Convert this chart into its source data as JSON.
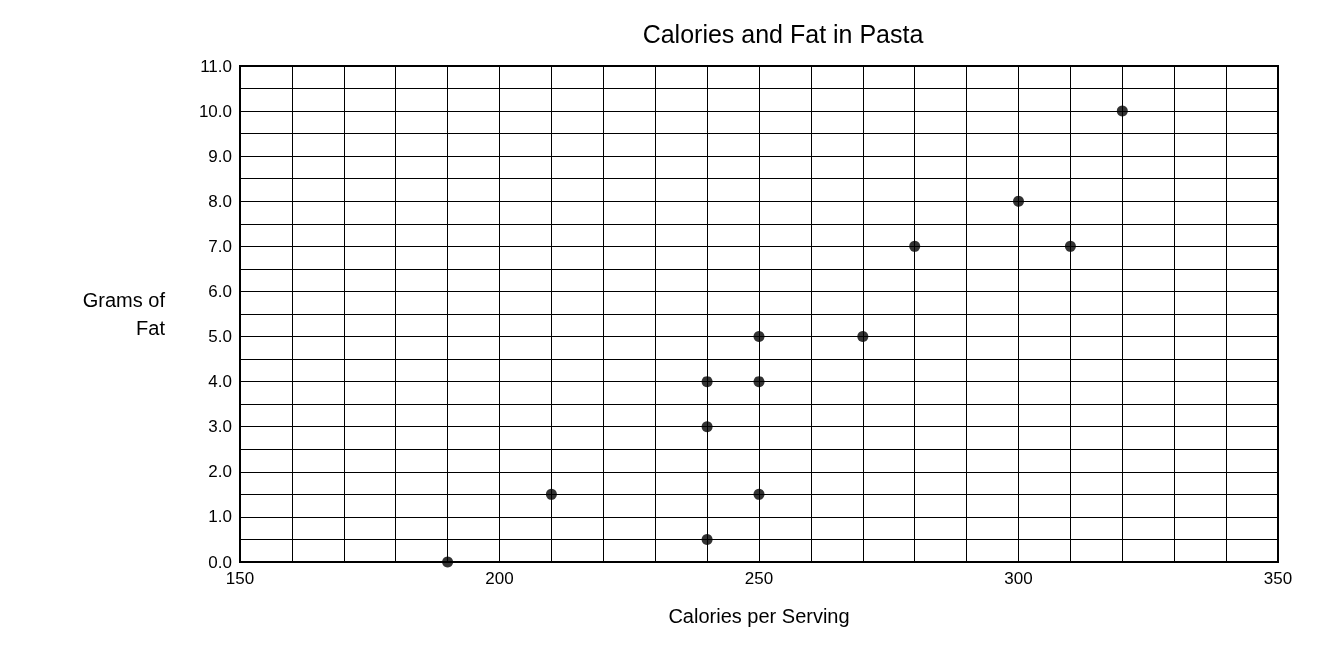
{
  "chart_data": {
    "type": "scatter",
    "title": "Calories and Fat in Pasta",
    "xlabel": "Calories per Serving",
    "ylabel": "Grams of\nFat",
    "x": [
      190,
      210,
      240,
      240,
      240,
      250,
      250,
      250,
      270,
      280,
      300,
      310,
      320
    ],
    "values": [
      0,
      1.5,
      0.5,
      3,
      4,
      1.5,
      4,
      5,
      5,
      7,
      8,
      7,
      10
    ],
    "color": "#000000",
    "marker": "circle",
    "grid": true,
    "xlim": [
      150,
      350
    ],
    "xticks": [
      150,
      {
        "value": 160,
        "label": null
      },
      {
        "value": 170,
        "label": null
      },
      {
        "value": 180,
        "label": null
      },
      {
        "value": 190,
        "label": null
      },
      200,
      {
        "value": 210,
        "label": null
      },
      {
        "value": 220,
        "label": null
      },
      {
        "value": 230,
        "label": null
      },
      {
        "value": 240,
        "label": null
      },
      250,
      {
        "value": 260,
        "label": null
      },
      {
        "value": 270,
        "label": null
      },
      {
        "value": 280,
        "label": null
      },
      {
        "value": 290,
        "label": null
      },
      300,
      {
        "value": 310,
        "label": null
      },
      {
        "value": 320,
        "label": null
      },
      {
        "value": 330,
        "label": null
      },
      {
        "value": 340,
        "label": null
      },
      350
    ],
    "ylim": [
      0,
      11
    ],
    "yticks": [
      {
        "value": 0,
        "label": "0.0"
      },
      {
        "value": 0.5,
        "label": null
      },
      {
        "value": 1,
        "label": "1.0"
      },
      {
        "value": 1.5,
        "label": null
      },
      {
        "value": 2,
        "label": "2.0"
      },
      {
        "value": 2.5,
        "label": null
      },
      {
        "value": 3,
        "label": "3.0"
      },
      {
        "value": 3.5,
        "label": null
      },
      {
        "value": 4,
        "label": "4.0"
      },
      {
        "value": 4.5,
        "label": null
      },
      {
        "value": 5,
        "label": "5.0"
      },
      {
        "value": 5.5,
        "label": null
      },
      {
        "value": 6,
        "label": "6.0"
      },
      {
        "value": 6.5,
        "label": null
      },
      {
        "value": 7,
        "label": "7.0"
      },
      {
        "value": 7.5,
        "label": null
      },
      {
        "value": 8,
        "label": "8.0"
      },
      {
        "value": 8.5,
        "label": null
      },
      {
        "value": 9,
        "label": "9.0"
      },
      {
        "value": 9.5,
        "label": null
      },
      {
        "value": 10,
        "label": "10.0"
      },
      {
        "value": 10.5,
        "label": null
      },
      {
        "value": 11,
        "label": "11.0"
      }
    ]
  }
}
